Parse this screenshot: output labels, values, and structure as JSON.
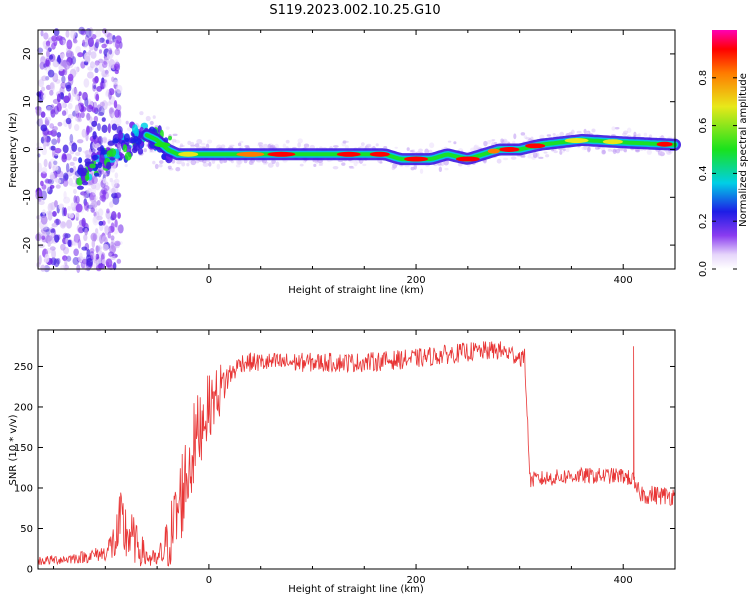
{
  "title": "S119.2023.002.10.25.G10",
  "chart_data": [
    {
      "type": "heatmap",
      "xlabel": "Height of straight line (km)",
      "ylabel": "Frequency (Hz)",
      "xlim": [
        -165,
        450
      ],
      "ylim": [
        -25,
        25
      ],
      "xticks": [
        0,
        200,
        400
      ],
      "yticks": [
        -20,
        -10,
        0,
        10,
        20
      ],
      "ridge": {
        "x": [
          -120,
          -100,
          -85,
          -70,
          -60,
          -50,
          -40,
          -30,
          -20,
          0,
          50,
          100,
          150,
          170,
          185,
          200,
          215,
          230,
          250,
          265,
          280,
          300,
          320,
          340,
          360,
          400,
          450
        ],
        "freq": [
          -5,
          -2,
          0,
          2,
          3,
          2,
          0,
          -1,
          -1,
          -1,
          -1,
          -1,
          -1,
          -1,
          -2,
          -2,
          -2,
          -1,
          -2,
          -1,
          0,
          0,
          1,
          1.5,
          2,
          1.5,
          1
        ]
      },
      "colorbar": {
        "label": "Normalized spectral amplitude",
        "range": [
          0,
          1
        ],
        "ticks": [
          "0.0",
          "0.2",
          "0.4",
          "0.6",
          "0.8"
        ]
      }
    },
    {
      "type": "line",
      "xlabel": "Height of straight line (km)",
      "ylabel": "SNR (10 * v/v)",
      "xlim": [
        -165,
        450
      ],
      "ylim": [
        0,
        295
      ],
      "xticks": [
        0,
        200,
        400
      ],
      "yticks": [
        0,
        50,
        100,
        150,
        200,
        250
      ],
      "color": "#e83535",
      "series": [
        {
          "x": [
            -165,
            -140,
            -120,
            -100,
            -90,
            -85,
            -80,
            -75,
            -70,
            -60,
            -50,
            -40,
            -35,
            -30,
            -25,
            -20,
            -15,
            -10,
            -5,
            0,
            5,
            10,
            15,
            20,
            25,
            30,
            40,
            60,
            100,
            150,
            200,
            250,
            280,
            305,
            310,
            312,
            350,
            400,
            410,
            412,
            415,
            420,
            450
          ],
          "mean": [
            10,
            12,
            15,
            20,
            35,
            50,
            45,
            40,
            30,
            15,
            10,
            30,
            50,
            70,
            100,
            120,
            150,
            170,
            190,
            200,
            210,
            220,
            230,
            240,
            245,
            255,
            255,
            255,
            255,
            255,
            260,
            268,
            270,
            260,
            110,
            110,
            115,
            115,
            110,
            100,
            95,
            92,
            90
          ],
          "spread": [
            6,
            6,
            8,
            10,
            30,
            50,
            40,
            35,
            25,
            15,
            10,
            35,
            45,
            55,
            60,
            55,
            55,
            50,
            45,
            40,
            35,
            35,
            25,
            15,
            12,
            12,
            12,
            12,
            12,
            12,
            12,
            12,
            12,
            12,
            10,
            10,
            10,
            10,
            10,
            10,
            12,
            12,
            12
          ]
        }
      ],
      "spikes": [
        {
          "x": 410,
          "y": 275
        }
      ]
    }
  ]
}
